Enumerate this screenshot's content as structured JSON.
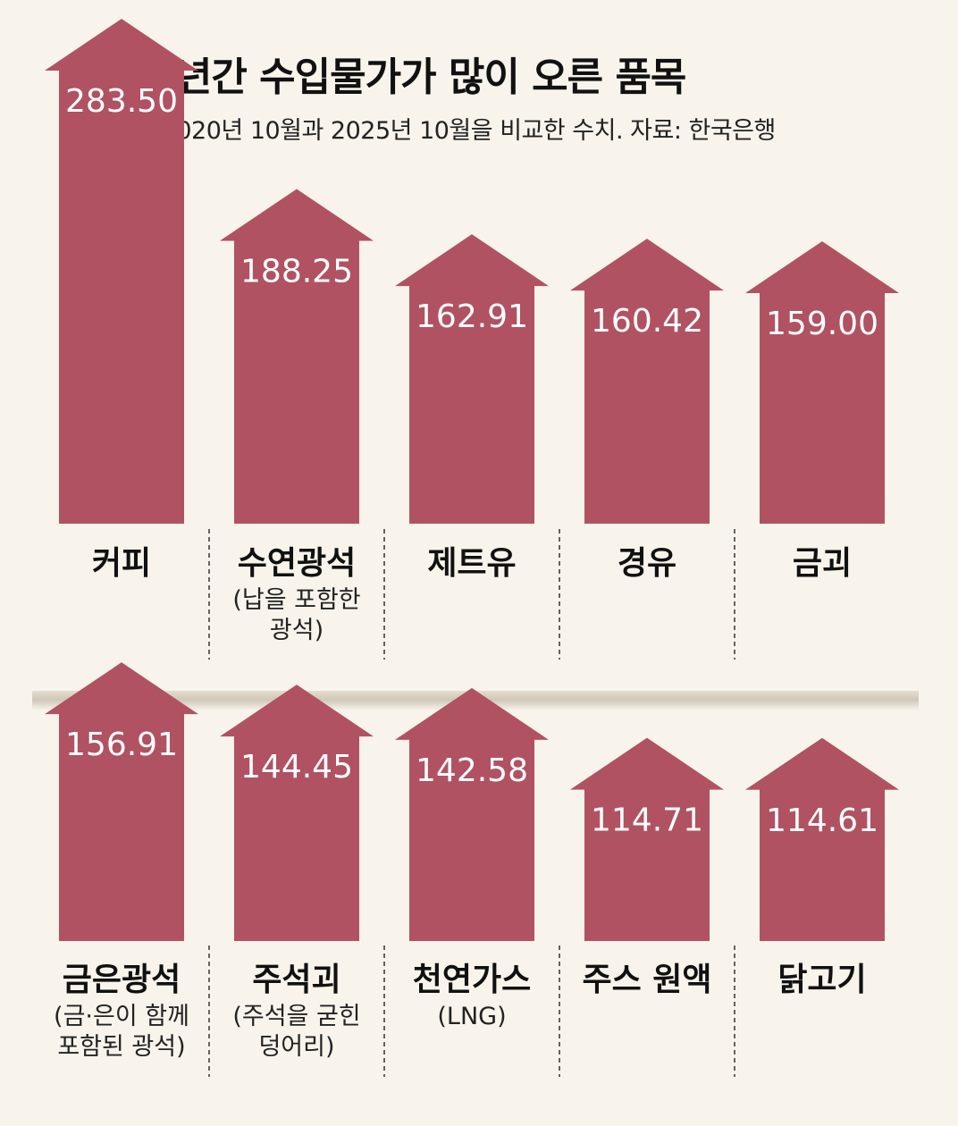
{
  "header": {
    "title": "최근 5년간 수입물가가 많이 오른 품목",
    "subtitle": "단위: %. 2020년 10월과 2025년 10월을 비교한 수치. 자료: 한국은행"
  },
  "colors": {
    "bar": "#b05262",
    "background": "#f8f4ec",
    "value_text": "#ffffff"
  },
  "chart_data": {
    "type": "bar",
    "title": "최근 5년간 수입물가가 많이 오른 품목",
    "unit": "%",
    "rows": [
      {
        "items": [
          {
            "label": "커피",
            "note": [],
            "value": 283.5,
            "display": "283.50"
          },
          {
            "label": "수연광석",
            "note": [
              "(납을 포함한",
              "광석)"
            ],
            "value": 188.25,
            "display": "188.25"
          },
          {
            "label": "제트유",
            "note": [],
            "value": 162.91,
            "display": "162.91"
          },
          {
            "label": "경유",
            "note": [],
            "value": 160.42,
            "display": "160.42"
          },
          {
            "label": "금괴",
            "note": [],
            "value": 159.0,
            "display": "159.00"
          }
        ]
      },
      {
        "items": [
          {
            "label": "금은광석",
            "note": [
              "(금·은이 함께",
              "포함된 광석)"
            ],
            "value": 156.91,
            "display": "156.91"
          },
          {
            "label": "주석괴",
            "note": [
              "(주석을 굳힌",
              "덩어리)"
            ],
            "value": 144.45,
            "display": "144.45"
          },
          {
            "label": "천연가스",
            "note": [
              "(LNG)"
            ],
            "value": 142.58,
            "display": "142.58"
          },
          {
            "label": "주스 원액",
            "note": [],
            "value": 114.71,
            "display": "114.71"
          },
          {
            "label": "닭고기",
            "note": [],
            "value": 114.61,
            "display": "114.61"
          }
        ]
      }
    ]
  }
}
